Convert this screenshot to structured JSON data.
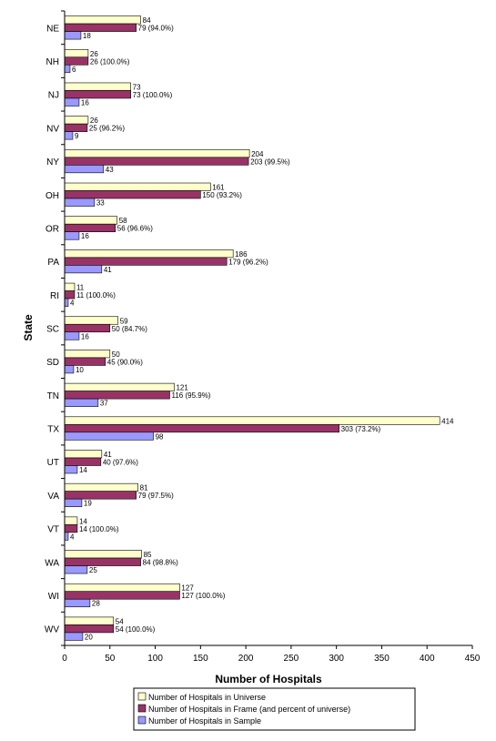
{
  "chart_data": {
    "type": "bar",
    "orientation": "horizontal",
    "xlabel": "Number of Hospitals",
    "ylabel": "State",
    "xlim": [
      0,
      450
    ],
    "x_ticks": [
      0,
      50,
      100,
      150,
      200,
      250,
      300,
      350,
      400,
      450
    ],
    "grid": false,
    "legend_position": "bottom",
    "categories": [
      "NE",
      "NH",
      "NJ",
      "NV",
      "NY",
      "OH",
      "OR",
      "PA",
      "RI",
      "SC",
      "SD",
      "TN",
      "TX",
      "UT",
      "VA",
      "VT",
      "WA",
      "WI",
      "WV"
    ],
    "series": [
      {
        "name": "Number of Hospitals in Universe",
        "color": "#FFFFCC",
        "values": [
          84,
          26,
          73,
          26,
          204,
          161,
          58,
          186,
          11,
          59,
          50,
          121,
          414,
          41,
          81,
          14,
          85,
          127,
          54
        ],
        "labels": [
          "84",
          "26",
          "73",
          "26",
          "204",
          "161",
          "58",
          "186",
          "11",
          "59",
          "50",
          "121",
          "414",
          "41",
          "81",
          "14",
          "85",
          "127",
          "54"
        ]
      },
      {
        "name": "Number of Hospitals in Frame (and percent of universe)",
        "color": "#993366",
        "values": [
          79,
          26,
          73,
          25,
          203,
          150,
          56,
          179,
          11,
          50,
          45,
          116,
          303,
          40,
          79,
          14,
          84,
          127,
          54
        ],
        "labels": [
          "79 (94.0%)",
          "26 (100.0%)",
          "73 (100.0%)",
          "25 (96.2%)",
          "203 (99.5%)",
          "150 (93.2%)",
          "56 (96.6%)",
          "179 (96.2%)",
          "11 (100.0%)",
          "50 (84.7%)",
          "45 (90.0%)",
          "116 (95.9%)",
          "303 (73.2%)",
          "40 (97.6%)",
          "79 (97.5%)",
          "14 (100.0%)",
          "84 (98.8%)",
          "127 (100.0%)",
          "54 (100.0%)"
        ]
      },
      {
        "name": "Number of Hospitals in Sample",
        "color": "#9999FF",
        "values": [
          18,
          6,
          16,
          9,
          43,
          33,
          16,
          41,
          4,
          16,
          10,
          37,
          98,
          14,
          19,
          4,
          25,
          28,
          20
        ],
        "labels": [
          "18",
          "6",
          "16",
          "9",
          "43",
          "33",
          "16",
          "41",
          "4",
          "16",
          "10",
          "37",
          "98",
          "14",
          "19",
          "4",
          "25",
          "28",
          "20"
        ]
      }
    ]
  }
}
